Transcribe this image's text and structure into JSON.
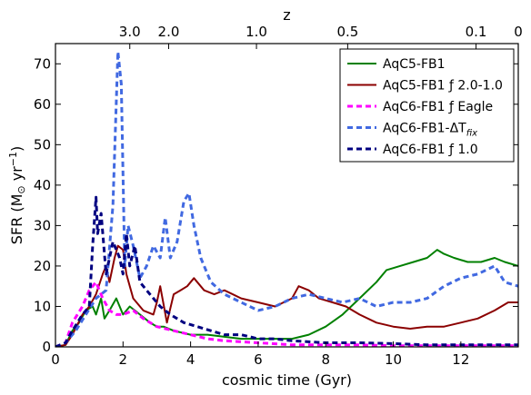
{
  "chart_data": {
    "type": "line",
    "xlabel": "cosmic time (Gyr)",
    "ylabel": "SFR (M",
    "ylabel_sun": "⊙",
    "ylabel_tail": " yr",
    "ylabel_sup": "−1",
    "ylabel_close": ")",
    "top_axis_label": "z",
    "xlim": [
      0,
      13.7
    ],
    "ylim": [
      0,
      75
    ],
    "grid": false,
    "legend_position": "top-right",
    "x_ticks": [
      0,
      2,
      4,
      6,
      8,
      10,
      12
    ],
    "y_ticks": [
      0,
      10,
      20,
      30,
      40,
      50,
      60,
      70
    ],
    "top_ticks": [
      {
        "label": "3.0",
        "time": 2.2
      },
      {
        "label": "2.0",
        "time": 3.35
      },
      {
        "label": "1.0",
        "time": 5.95
      },
      {
        "label": "0.5",
        "time": 8.65
      },
      {
        "label": "0.1",
        "time": 12.45
      },
      {
        "label": "0",
        "time": 13.7
      }
    ],
    "series": [
      {
        "name": "AqC5-FB1",
        "color": "#008000",
        "dash": "solid",
        "x": [
          0,
          0.3,
          0.5,
          0.7,
          0.9,
          1.1,
          1.2,
          1.35,
          1.45,
          1.6,
          1.8,
          1.9,
          2.0,
          2.2,
          2.5,
          2.8,
          3.0,
          3.2,
          3.5,
          4.0,
          4.5,
          5.0,
          5.5,
          6.0,
          6.5,
          7.0,
          7.5,
          8.0,
          8.5,
          9.0,
          9.5,
          9.8,
          10.2,
          10.6,
          11.0,
          11.3,
          11.5,
          11.8,
          12.2,
          12.6,
          13.0,
          13.3,
          13.7
        ],
        "y": [
          0,
          0.5,
          4,
          6,
          9,
          10,
          8,
          12,
          7,
          9,
          12,
          10,
          8,
          10,
          8,
          6,
          5,
          5,
          4,
          3,
          3,
          2.5,
          2,
          2,
          2,
          2,
          3,
          5,
          8,
          12,
          16,
          19,
          20,
          21,
          22,
          24,
          23,
          22,
          21,
          21,
          22,
          21,
          20
        ]
      },
      {
        "name": "AqC5-FB1 ƒ 2.0-1.0",
        "color": "#8b0000",
        "dash": "solid",
        "x": [
          0,
          0.3,
          0.5,
          0.8,
          1.0,
          1.2,
          1.4,
          1.5,
          1.6,
          1.75,
          1.85,
          2.0,
          2.1,
          2.3,
          2.6,
          2.9,
          3.0,
          3.1,
          3.3,
          3.5,
          3.7,
          3.9,
          4.1,
          4.4,
          4.7,
          5.0,
          5.5,
          6.0,
          6.5,
          7.0,
          7.2,
          7.5,
          7.8,
          8.2,
          8.6,
          9.0,
          9.5,
          10.0,
          10.5,
          11.0,
          11.5,
          12.0,
          12.5,
          13.0,
          13.4,
          13.7
        ],
        "y": [
          0,
          0.5,
          3,
          8,
          10,
          13,
          18,
          20,
          16,
          22,
          25,
          24,
          18,
          12,
          9,
          8,
          11,
          15,
          6,
          13,
          14,
          15,
          17,
          14,
          13,
          14,
          12,
          11,
          10,
          12,
          15,
          14,
          12,
          11,
          10,
          8,
          6,
          5,
          4.5,
          5,
          5,
          6,
          7,
          9,
          11,
          11
        ]
      },
      {
        "name": "AqC6-FB1 ƒ Eagle",
        "color": "#ff00ff",
        "dash": "dashed",
        "x": [
          0,
          0.3,
          0.5,
          0.8,
          1.0,
          1.2,
          1.4,
          1.6,
          1.8,
          2.0,
          2.3,
          2.6,
          3.0,
          3.5,
          4.0,
          4.5,
          5.0,
          6.0,
          7.0,
          8.0,
          9.0,
          10.0,
          11.0,
          12.0,
          13.0,
          13.7
        ],
        "y": [
          0,
          1,
          6,
          10,
          14,
          16,
          12,
          9,
          8,
          8,
          9,
          7,
          5,
          4,
          3,
          2,
          1.5,
          1,
          0.5,
          0.5,
          0.5,
          0.3,
          0.3,
          0.3,
          0.3,
          0.3
        ]
      },
      {
        "name": "AqC6-FB1-ΔT",
        "subscript": "fix",
        "color": "#4169e1",
        "dash": "dashed",
        "x": [
          0,
          0.3,
          0.6,
          0.9,
          1.2,
          1.5,
          1.7,
          1.85,
          1.95,
          2.05,
          2.15,
          2.3,
          2.5,
          2.7,
          2.9,
          3.1,
          3.25,
          3.4,
          3.6,
          3.8,
          3.95,
          4.1,
          4.3,
          4.6,
          5.0,
          5.5,
          6.0,
          6.5,
          7.0,
          7.5,
          8.0,
          8.5,
          9.0,
          9.5,
          10.0,
          10.5,
          11.0,
          11.5,
          12.0,
          12.5,
          13.0,
          13.3,
          13.7
        ],
        "y": [
          0,
          1,
          4,
          8,
          12,
          14,
          35,
          73,
          65,
          20,
          30,
          25,
          17,
          20,
          25,
          22,
          32,
          22,
          26,
          36,
          38,
          30,
          22,
          16,
          13,
          11,
          9,
          10,
          12,
          13,
          12,
          11,
          12,
          10,
          11,
          11,
          12,
          15,
          17,
          18,
          20,
          16,
          15
        ]
      },
      {
        "name": "AqC6-FB1 ƒ 1.0",
        "color": "#000080",
        "dash": "dashed",
        "x": [
          0,
          0.3,
          0.5,
          0.8,
          1.0,
          1.1,
          1.2,
          1.25,
          1.35,
          1.5,
          1.7,
          1.9,
          2.0,
          2.1,
          2.2,
          2.35,
          2.5,
          2.7,
          2.9,
          3.1,
          3.4,
          3.8,
          4.2,
          4.6,
          5.0,
          5.5,
          6.0,
          6.5,
          7.0,
          8.0,
          9.0,
          10.0,
          11.0,
          12.0,
          13.0,
          13.7
        ],
        "y": [
          0,
          1,
          4,
          8,
          10,
          25,
          37,
          28,
          33,
          18,
          26,
          22,
          18,
          28,
          20,
          25,
          16,
          14,
          12,
          10,
          8,
          6,
          5,
          4,
          3,
          3,
          2,
          2,
          1.5,
          1,
          1,
          0.8,
          0.5,
          0.5,
          0.5,
          0.5
        ]
      }
    ]
  }
}
